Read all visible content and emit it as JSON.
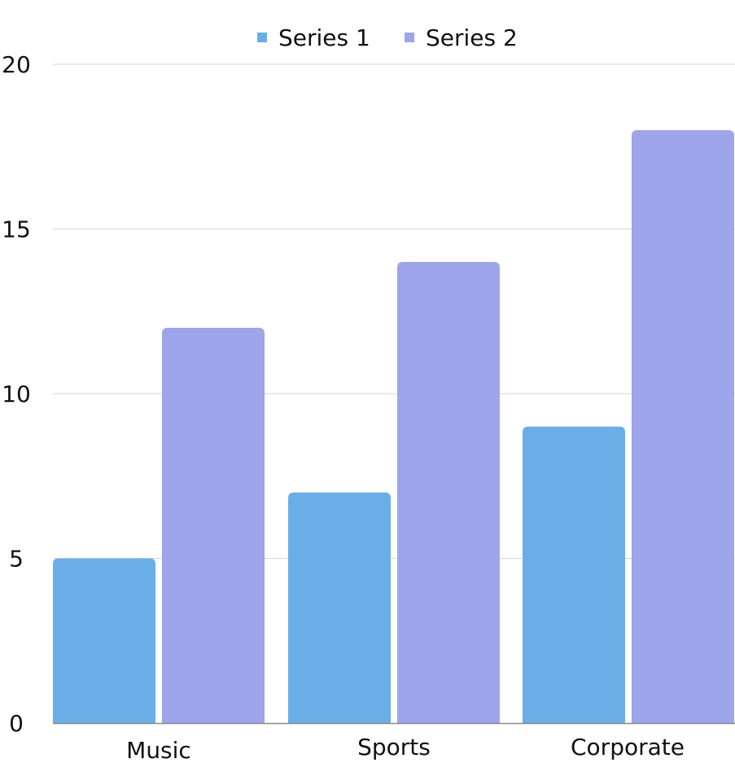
{
  "chart_data": {
    "type": "bar",
    "categories": [
      "Music",
      "Sports",
      "Corporate"
    ],
    "series": [
      {
        "name": "Series 1",
        "values": [
          5,
          7,
          9
        ],
        "color": "#6aaee8"
      },
      {
        "name": "Series 2",
        "values": [
          12,
          14,
          18
        ],
        "color": "#9ea5ea"
      }
    ],
    "ylim": [
      0,
      20
    ],
    "yticks": [
      0,
      5,
      10,
      15,
      20
    ],
    "ytick_labels": [
      "0",
      "5",
      "10",
      "15",
      "20"
    ],
    "legend_position": "top-center",
    "grid": true,
    "gridline_color": "#d6d6d6",
    "axis_color": "#8a8a8a"
  }
}
